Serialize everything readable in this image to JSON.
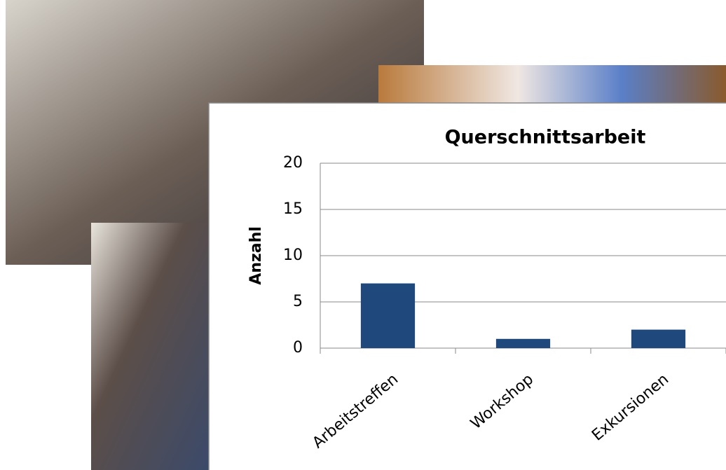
{
  "chart_data": {
    "type": "bar",
    "title": "Querschnittsarbeit",
    "y_label": "Anzahl",
    "categories": [
      "Arbeitstreffen",
      "Workshop",
      "Exkursionen"
    ],
    "values": [
      7,
      1,
      2
    ],
    "color": "#1f497d",
    "ylim": [
      0,
      20
    ],
    "yticks": [
      0,
      5,
      10,
      15,
      20
    ],
    "grid": true
  }
}
